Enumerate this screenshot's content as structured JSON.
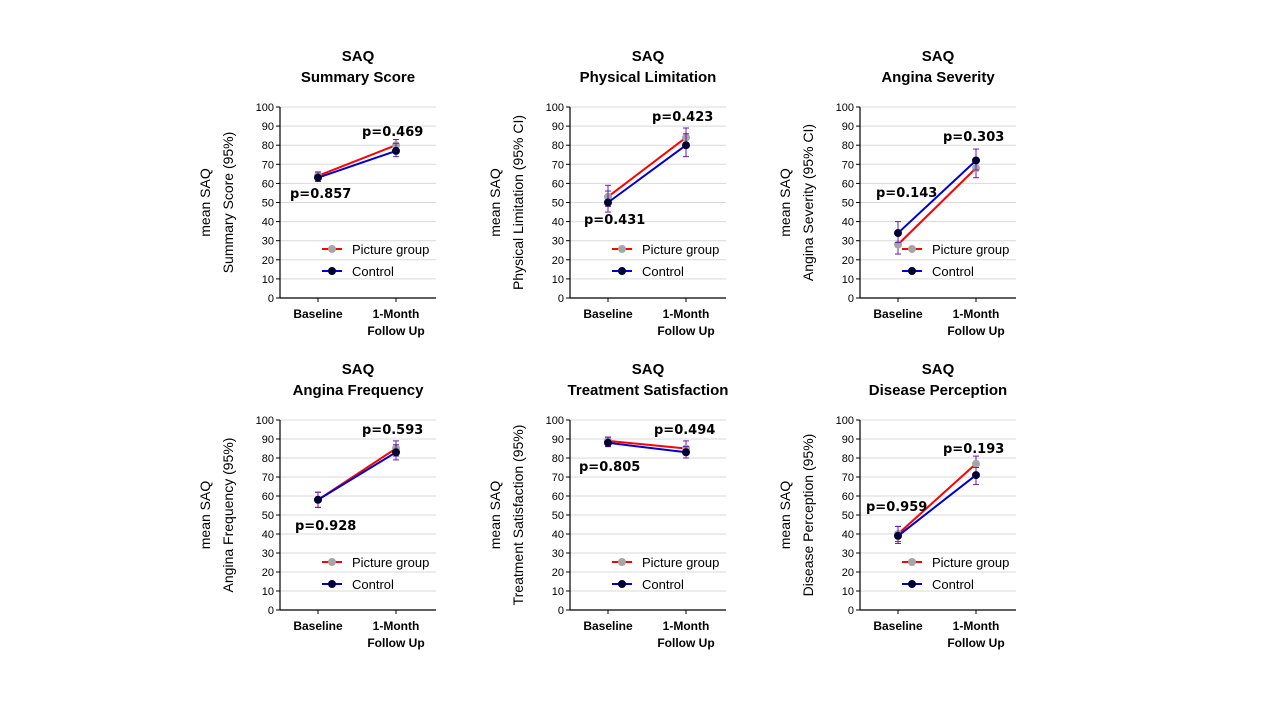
{
  "colors": {
    "picture_line": "#ff0000",
    "picture_marker": "#a6a6a6",
    "control_line": "#0000cc",
    "control_marker": "#000033",
    "errorbar": "#6a1bb0",
    "grid": "#d9d9d9"
  },
  "chart_data": [
    {
      "type": "line",
      "title_line1": "SAQ",
      "title_line2": "Summary Score",
      "ylabel_line1": "mean SAQ",
      "ylabel_line2": "Summary Score (95%)",
      "categories": [
        "Baseline",
        "1-Month Follow Up"
      ],
      "ylim": [
        0,
        100
      ],
      "yticks": [
        0,
        10,
        20,
        30,
        40,
        50,
        60,
        70,
        80,
        90,
        100
      ],
      "grid": true,
      "legend_position": "bottom-right",
      "series": [
        {
          "name": "Picture group",
          "values": [
            64,
            80
          ],
          "ci_low": [
            61,
            76
          ],
          "ci_high": [
            66,
            83
          ]
        },
        {
          "name": "Control",
          "values": [
            63,
            77
          ],
          "ci_low": [
            61,
            74
          ],
          "ci_high": [
            66,
            81
          ]
        }
      ],
      "annotations": [
        "p=0.857",
        "p=0.469"
      ]
    },
    {
      "type": "line",
      "title_line1": "SAQ",
      "title_line2": "Physical Limitation",
      "ylabel_line1": "mean SAQ",
      "ylabel_line2": "Physical Limitation (95% CI)",
      "categories": [
        "Baseline",
        "1-Month Follow Up"
      ],
      "ylim": [
        0,
        100
      ],
      "yticks": [
        0,
        10,
        20,
        30,
        40,
        50,
        60,
        70,
        80,
        90,
        100
      ],
      "grid": true,
      "legend_position": "bottom-right",
      "series": [
        {
          "name": "Picture group",
          "values": [
            53,
            84
          ],
          "ci_low": [
            48,
            79
          ],
          "ci_high": [
            59,
            89
          ]
        },
        {
          "name": "Control",
          "values": [
            50,
            80
          ],
          "ci_low": [
            45,
            74
          ],
          "ci_high": [
            56,
            86
          ]
        }
      ],
      "annotations": [
        "p=0.431",
        "p=0.423"
      ]
    },
    {
      "type": "line",
      "title_line1": "SAQ",
      "title_line2": "Angina Severity",
      "ylabel_line1": "mean SAQ",
      "ylabel_line2": "Angina Severity (95% CI)",
      "categories": [
        "Baseline",
        "1-Month Follow Up"
      ],
      "ylim": [
        0,
        100
      ],
      "yticks": [
        0,
        10,
        20,
        30,
        40,
        50,
        60,
        70,
        80,
        90,
        100
      ],
      "grid": true,
      "legend_position": "bottom-right",
      "series": [
        {
          "name": "Picture group",
          "values": [
            28,
            68
          ],
          "ci_low": [
            23,
            63
          ],
          "ci_high": [
            33,
            73
          ]
        },
        {
          "name": "Control",
          "values": [
            34,
            72
          ],
          "ci_low": [
            29,
            67
          ],
          "ci_high": [
            40,
            78
          ]
        }
      ],
      "annotations": [
        "p=0.143",
        "p=0.303"
      ]
    },
    {
      "type": "line",
      "title_line1": "SAQ",
      "title_line2": "Angina Frequency",
      "ylabel_line1": "mean SAQ",
      "ylabel_line2": "Angina Frequency (95%)",
      "categories": [
        "Baseline",
        "1-Month Follow Up"
      ],
      "ylim": [
        0,
        100
      ],
      "yticks": [
        0,
        10,
        20,
        30,
        40,
        50,
        60,
        70,
        80,
        90,
        100
      ],
      "grid": true,
      "legend_position": "bottom-right",
      "series": [
        {
          "name": "Picture group",
          "values": [
            58,
            85
          ],
          "ci_low": [
            54,
            81
          ],
          "ci_high": [
            62,
            89
          ]
        },
        {
          "name": "Control",
          "values": [
            58,
            83
          ],
          "ci_low": [
            54,
            79
          ],
          "ci_high": [
            62,
            87
          ]
        }
      ],
      "annotations": [
        "p=0.928",
        "p=0.593"
      ]
    },
    {
      "type": "line",
      "title_line1": "SAQ",
      "title_line2": "Treatment Satisfaction",
      "ylabel_line1": "mean SAQ",
      "ylabel_line2": "Treatment Satisfaction (95%)",
      "categories": [
        "Baseline",
        "1-Month Follow Up"
      ],
      "ylim": [
        0,
        100
      ],
      "yticks": [
        0,
        10,
        20,
        30,
        40,
        50,
        60,
        70,
        80,
        90,
        100
      ],
      "grid": true,
      "legend_position": "bottom-right",
      "series": [
        {
          "name": "Picture group",
          "values": [
            89,
            85
          ],
          "ci_low": [
            86,
            82
          ],
          "ci_high": [
            91,
            89
          ]
        },
        {
          "name": "Control",
          "values": [
            88,
            83
          ],
          "ci_low": [
            86,
            80
          ],
          "ci_high": [
            91,
            86
          ]
        }
      ],
      "annotations": [
        "p=0.805",
        "p=0.494"
      ]
    },
    {
      "type": "line",
      "title_line1": "SAQ",
      "title_line2": "Disease Perception",
      "ylabel_line1": "mean SAQ",
      "ylabel_line2": "Disease Perception (95%)",
      "categories": [
        "Baseline",
        "1-Month Follow Up"
      ],
      "ylim": [
        0,
        100
      ],
      "yticks": [
        0,
        10,
        20,
        30,
        40,
        50,
        60,
        70,
        80,
        90,
        100
      ],
      "grid": true,
      "legend_position": "bottom-right",
      "series": [
        {
          "name": "Picture group",
          "values": [
            40,
            77
          ],
          "ci_low": [
            36,
            72
          ],
          "ci_high": [
            44,
            81
          ]
        },
        {
          "name": "Control",
          "values": [
            39,
            71
          ],
          "ci_low": [
            35,
            66
          ],
          "ci_high": [
            44,
            75
          ]
        }
      ],
      "annotations": [
        "p=0.959",
        "p=0.193"
      ]
    }
  ]
}
